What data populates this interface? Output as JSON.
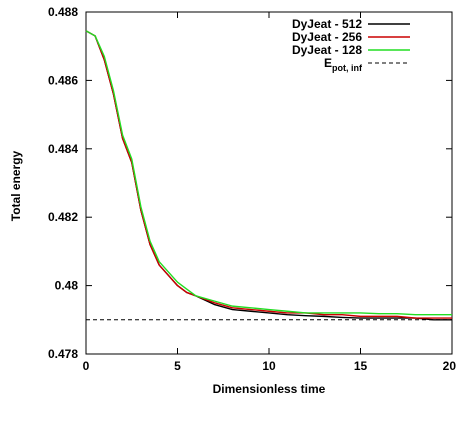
{
  "chart_data": {
    "type": "line",
    "title": "",
    "xlabel": "Dimensionless time",
    "ylabel": "Total energy",
    "xlim": [
      0,
      20
    ],
    "ylim": [
      0.478,
      0.488
    ],
    "xticks": [
      0,
      5,
      10,
      15,
      20
    ],
    "xtick_labels": [
      "0",
      "5",
      "10",
      "15",
      "20"
    ],
    "yticks": [
      0.478,
      0.48,
      0.482,
      0.484,
      0.486,
      0.488
    ],
    "ytick_labels": [
      "0.478",
      "0.48",
      "0.482",
      "0.484",
      "0.486",
      "0.488"
    ],
    "grid": false,
    "legend_position": "top-right",
    "series": [
      {
        "name": "DyJeat - 512",
        "color": "#000000",
        "style": "solid",
        "x": [
          0,
          0.5,
          1.0,
          1.5,
          2.0,
          2.5,
          3.0,
          3.5,
          4.0,
          4.5,
          5.0,
          5.5,
          6.0,
          7.0,
          8.0,
          9.0,
          10.0,
          11.0,
          12.0,
          13.0,
          14.0,
          15.0,
          16.0,
          17.0,
          18.0,
          19.0,
          20.0
        ],
        "y": [
          0.48745,
          0.4873,
          0.4866,
          0.4856,
          0.4843,
          0.4836,
          0.4822,
          0.4812,
          0.4806,
          0.4803,
          0.48,
          0.4798,
          0.4797,
          0.47945,
          0.4793,
          0.47925,
          0.4792,
          0.47915,
          0.47912,
          0.4791,
          0.47907,
          0.47905,
          0.47905,
          0.47905,
          0.47905,
          0.479,
          0.479
        ]
      },
      {
        "name": "DyJeat - 256",
        "color": "#cc0000",
        "style": "solid",
        "x": [
          0,
          0.5,
          1.0,
          1.5,
          2.0,
          2.5,
          3.0,
          3.5,
          4.0,
          4.5,
          5.0,
          5.5,
          6.0,
          7.0,
          8.0,
          9.0,
          10.0,
          11.0,
          12.0,
          13.0,
          14.0,
          15.0,
          16.0,
          17.0,
          18.0,
          19.0,
          20.0
        ],
        "y": [
          0.48745,
          0.4873,
          0.4866,
          0.4856,
          0.4843,
          0.4836,
          0.4822,
          0.4812,
          0.4806,
          0.4803,
          0.48,
          0.4798,
          0.4797,
          0.4795,
          0.47935,
          0.4793,
          0.47925,
          0.4792,
          0.4792,
          0.47915,
          0.47915,
          0.4791,
          0.4791,
          0.4791,
          0.47905,
          0.47905,
          0.47905
        ]
      },
      {
        "name": "DyJeat - 128",
        "color": "#22dd22",
        "style": "solid",
        "x": [
          0,
          0.5,
          1.0,
          1.5,
          2.0,
          2.5,
          3.0,
          3.5,
          4.0,
          4.5,
          5.0,
          5.5,
          6.0,
          7.0,
          8.0,
          9.0,
          10.0,
          11.0,
          12.0,
          13.0,
          14.0,
          15.0,
          16.0,
          17.0,
          18.0,
          19.0,
          20.0
        ],
        "y": [
          0.48745,
          0.4873,
          0.4867,
          0.4857,
          0.4844,
          0.4837,
          0.4823,
          0.4813,
          0.4807,
          0.4804,
          0.4801,
          0.4799,
          0.4797,
          0.47955,
          0.4794,
          0.47935,
          0.4793,
          0.47925,
          0.4792,
          0.4792,
          0.4792,
          0.4792,
          0.47918,
          0.47918,
          0.47915,
          0.47915,
          0.47915
        ]
      },
      {
        "name": "E",
        "name_subscript": "pot, inf",
        "color": "#000000",
        "style": "dashed",
        "x": [
          0,
          20
        ],
        "y": [
          0.479,
          0.479
        ]
      }
    ]
  }
}
